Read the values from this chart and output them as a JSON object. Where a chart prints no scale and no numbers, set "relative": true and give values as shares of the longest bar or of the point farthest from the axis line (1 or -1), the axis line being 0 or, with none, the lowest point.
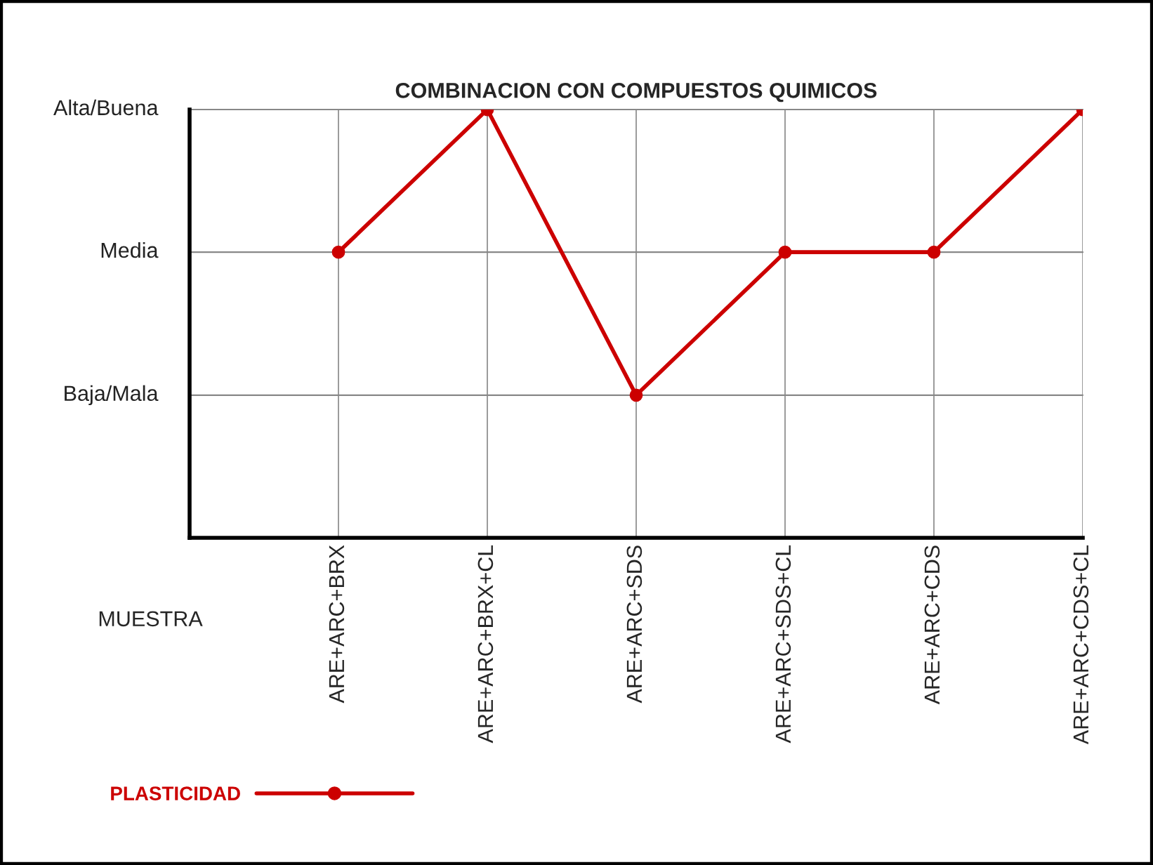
{
  "chart_data": {
    "type": "line",
    "title": "COMBINACION CON COMPUESTOS QUIMICOS",
    "xlabel": "MUESTRA",
    "categories": [
      "ARE+ARC+BRX",
      "ARE+ARC+BRX+CL",
      "ARE+ARC+SDS",
      "ARE+ARC+SDS+CL",
      "ARE+ARC+CDS",
      "ARE+ARC+CDS+CL"
    ],
    "series": [
      {
        "name": "PLASTICIDAD",
        "color": "#cc0000",
        "values": [
          0.667,
          1,
          0.333,
          0.667,
          0.667,
          1
        ]
      }
    ],
    "relative": true,
    "ref_lines": [
      {
        "axis": "y",
        "value": 0.333,
        "label": "Baja/Mala",
        "color": "#888888"
      },
      {
        "axis": "y",
        "value": 0.667,
        "label": "Media",
        "color": "#888888"
      },
      {
        "axis": "y",
        "value": 1,
        "label": "Alta/Buena",
        "color": "#888888"
      }
    ],
    "grid": true,
    "legend": "bottom left",
    "marker": "circle",
    "line_style": "solid"
  }
}
